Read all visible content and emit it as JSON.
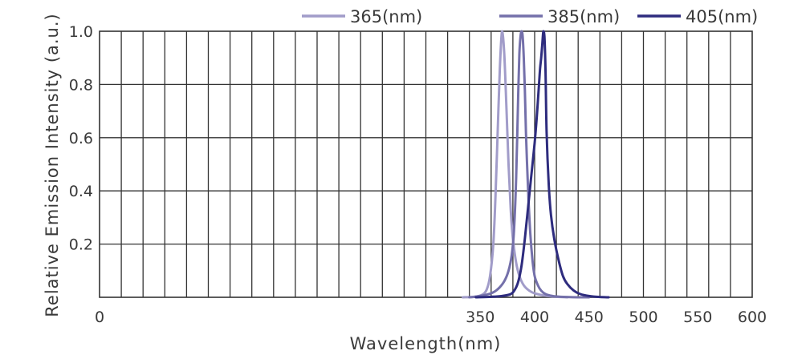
{
  "chart_data": {
    "type": "line",
    "title": "",
    "xlabel": "Wavelength(nm)",
    "ylabel": "Relative Emission Intensity (a.u.)",
    "xlim": [
      0,
      600
    ],
    "ylim": [
      0,
      1.0
    ],
    "x_ticks": [
      {
        "value": 0,
        "label": "0"
      },
      {
        "value": 350,
        "label": "350"
      },
      {
        "value": 400,
        "label": "400"
      },
      {
        "value": 450,
        "label": "450"
      },
      {
        "value": 500,
        "label": "500"
      },
      {
        "value": 550,
        "label": "550"
      },
      {
        "value": 600,
        "label": "600"
      }
    ],
    "y_ticks": [
      {
        "value": 0.2,
        "label": "0.2"
      },
      {
        "value": 0.4,
        "label": "0.4"
      },
      {
        "value": 0.6,
        "label": "0.6"
      },
      {
        "value": 0.8,
        "label": "0.8"
      },
      {
        "value": 1.0,
        "label": "1.0"
      }
    ],
    "grid": true,
    "legend_position": "top-right",
    "series": [
      {
        "name": "365(nm)",
        "color": "#a19cc9",
        "x": [
          334,
          345,
          352,
          356,
          359,
          362,
          364,
          366,
          368,
          370,
          372,
          374,
          376,
          378,
          380,
          383,
          386,
          390,
          395,
          400,
          410,
          420,
          430
        ],
        "y": [
          0.0,
          0.002,
          0.01,
          0.03,
          0.08,
          0.2,
          0.38,
          0.62,
          0.86,
          1.0,
          0.92,
          0.72,
          0.5,
          0.33,
          0.22,
          0.13,
          0.08,
          0.045,
          0.025,
          0.015,
          0.006,
          0.002,
          0.0
        ]
      },
      {
        "name": "385(nm)",
        "color": "#7470aa",
        "x": [
          340,
          350,
          360,
          366,
          372,
          376,
          379,
          381,
          383,
          385,
          386,
          387,
          388,
          389,
          390,
          391,
          392,
          394,
          396,
          398,
          400,
          403,
          406,
          410,
          415,
          420,
          430,
          440,
          450
        ],
        "y": [
          0.0,
          0.005,
          0.015,
          0.03,
          0.06,
          0.1,
          0.16,
          0.25,
          0.45,
          0.78,
          0.92,
          0.98,
          1.0,
          0.98,
          0.9,
          0.78,
          0.62,
          0.4,
          0.24,
          0.14,
          0.08,
          0.045,
          0.025,
          0.012,
          0.006,
          0.003,
          0.001,
          0.0,
          0.0
        ]
      },
      {
        "name": "405(nm)",
        "color": "#2e2c7e",
        "x": [
          346,
          360,
          370,
          378,
          382,
          385,
          388,
          391,
          394,
          397,
          400,
          402,
          404,
          405,
          406,
          407,
          408,
          409,
          410,
          411,
          413,
          415,
          418,
          422,
          426,
          430,
          436,
          442,
          450,
          460,
          468
        ],
        "y": [
          0.0,
          0.002,
          0.005,
          0.012,
          0.03,
          0.06,
          0.12,
          0.22,
          0.34,
          0.46,
          0.58,
          0.68,
          0.8,
          0.86,
          0.9,
          0.95,
          1.0,
          0.98,
          0.85,
          0.62,
          0.42,
          0.31,
          0.22,
          0.14,
          0.08,
          0.05,
          0.025,
          0.012,
          0.005,
          0.001,
          0.0
        ]
      }
    ]
  }
}
